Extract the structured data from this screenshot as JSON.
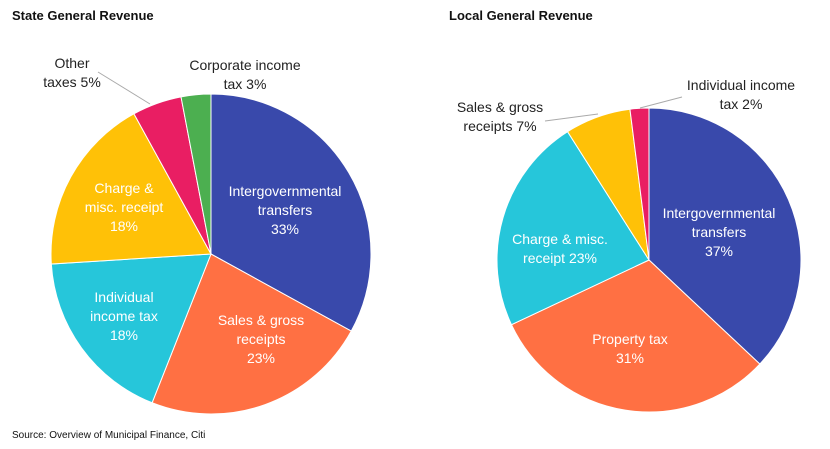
{
  "source": "Source: Overview of Municipal Finance, Citi",
  "chart_data": [
    {
      "type": "pie",
      "title": "State General Revenue",
      "slices": [
        {
          "lines": [
            "Intergovernmental",
            "transfers",
            "33%"
          ],
          "value": 33,
          "color": "#3949ab",
          "label_color": "#ffffff"
        },
        {
          "lines": [
            "Sales & gross",
            "receipts",
            "23%"
          ],
          "value": 23,
          "color": "#ff7043",
          "label_color": "#ffffff"
        },
        {
          "lines": [
            "Individual",
            "income tax",
            "18%"
          ],
          "value": 18,
          "color": "#26c6da",
          "label_color": "#ffffff"
        },
        {
          "lines": [
            "Charge &",
            "misc. receipt",
            "18%"
          ],
          "value": 18,
          "color": "#ffc107",
          "label_color": "#ffffff"
        },
        {
          "lines": [
            "Other",
            "taxes 5%"
          ],
          "value": 5,
          "color": "#e91e63",
          "label_color": "#222222"
        },
        {
          "lines": [
            "Corporate income",
            "tax 3%"
          ],
          "value": 3,
          "color": "#4caf50",
          "label_color": "#222222"
        }
      ]
    },
    {
      "type": "pie",
      "title": "Local General Revenue",
      "slices": [
        {
          "lines": [
            "Intergovernmental",
            "transfers",
            "37%"
          ],
          "value": 37,
          "color": "#3949ab",
          "label_color": "#ffffff"
        },
        {
          "lines": [
            "Property tax",
            "31%"
          ],
          "value": 31,
          "color": "#ff7043",
          "label_color": "#ffffff"
        },
        {
          "lines": [
            "Charge & misc.",
            "receipt 23%"
          ],
          "value": 23,
          "color": "#26c6da",
          "label_color": "#ffffff"
        },
        {
          "lines": [
            "Sales & gross",
            "receipts 7%"
          ],
          "value": 7,
          "color": "#ffc107",
          "label_color": "#222222"
        },
        {
          "lines": [
            "Individual income",
            "tax 2%"
          ],
          "value": 2,
          "color": "#e91e63",
          "label_color": "#222222"
        }
      ]
    }
  ]
}
